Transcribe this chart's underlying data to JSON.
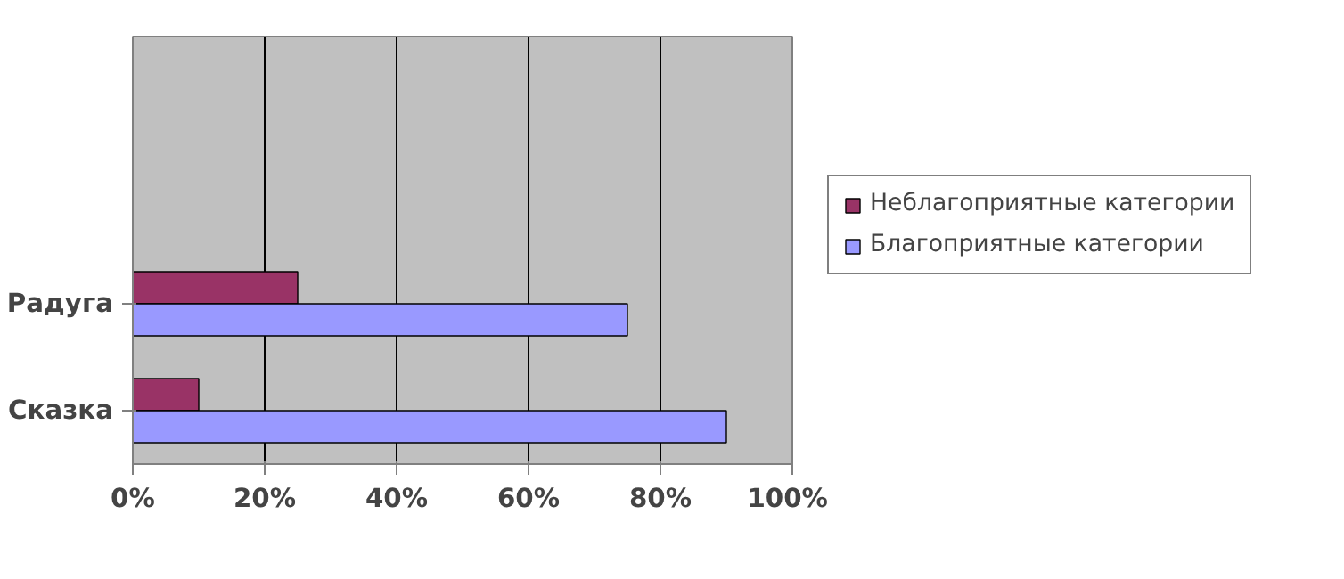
{
  "chart_data": {
    "type": "bar",
    "orientation": "horizontal",
    "categories": [
      null,
      null,
      "Радуга",
      "Сказка"
    ],
    "series": [
      {
        "name": "Неблагоприятные категории",
        "color": "#993366",
        "values": [
          null,
          null,
          25,
          10
        ]
      },
      {
        "name": "Благоприятные категории",
        "color": "#9999ff",
        "values": [
          null,
          null,
          75,
          90
        ]
      }
    ],
    "xlim": [
      0,
      100
    ],
    "xticks": [
      {
        "value": 0,
        "label": "0%"
      },
      {
        "value": 20,
        "label": "20%"
      },
      {
        "value": 40,
        "label": "40%"
      },
      {
        "value": 60,
        "label": "60%"
      },
      {
        "value": 80,
        "label": "80%"
      },
      {
        "value": 100,
        "label": "100%"
      }
    ],
    "grid": "x",
    "legend": "right"
  }
}
